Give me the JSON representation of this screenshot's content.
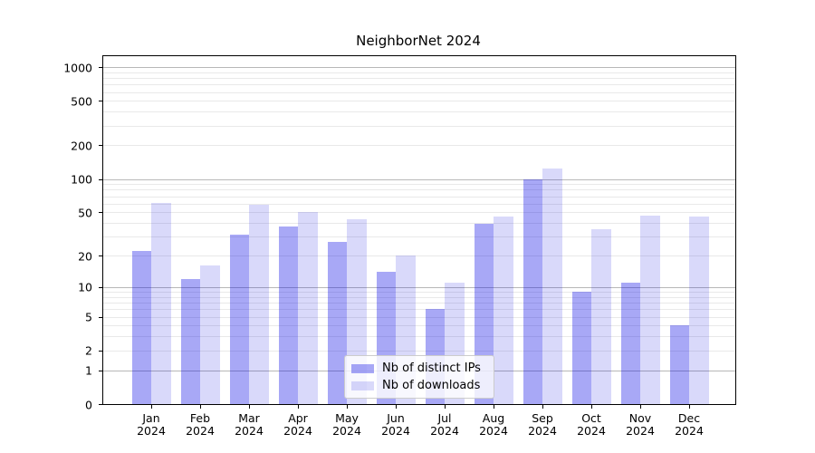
{
  "title": "NeighborNet 2024",
  "chart_data": {
    "type": "bar",
    "title": "NeighborNet 2024",
    "categories": [
      "Jan 2024",
      "Feb 2024",
      "Mar 2024",
      "Apr 2024",
      "May 2024",
      "Jun 2024",
      "Jul 2024",
      "Aug 2024",
      "Sep 2024",
      "Oct 2024",
      "Nov 2024",
      "Dec 2024"
    ],
    "month_labels": [
      "Jan",
      "Feb",
      "Mar",
      "Apr",
      "May",
      "Jun",
      "Jul",
      "Aug",
      "Sep",
      "Oct",
      "Nov",
      "Dec"
    ],
    "year": "2024",
    "series": [
      {
        "name": "Nb of distinct IPs",
        "color": "rgba(2,2,230,0.345)",
        "values": [
          22,
          12,
          31,
          37,
          27,
          14,
          6,
          39,
          100,
          9,
          11,
          4
        ]
      },
      {
        "name": "Nb of downloads",
        "color": "rgba(0,0,224,0.15)",
        "values": [
          61,
          16,
          58,
          50,
          43,
          20,
          11,
          46,
          124,
          35,
          47,
          46
        ]
      }
    ],
    "yscale": "log1p",
    "yticks": [
      0,
      1,
      2,
      5,
      10,
      20,
      50,
      100,
      200,
      500,
      1000
    ],
    "ylim": [
      0,
      1250
    ],
    "xlabel": "",
    "ylabel": "",
    "grid": {
      "orientation": "horizontal",
      "major_at": [
        1,
        10,
        100,
        1000
      ],
      "minor_at": [
        2,
        3,
        4,
        5,
        6,
        7,
        8,
        9,
        20,
        30,
        40,
        50,
        60,
        70,
        80,
        90,
        200,
        300,
        400,
        500,
        600,
        700,
        800,
        900
      ],
      "major_color": "#b8b8b8",
      "minor_color": "#e9e9e9"
    },
    "legend": {
      "position": "lower center",
      "labels": [
        "Nb of distinct IPs",
        "Nb of downloads"
      ]
    },
    "colors": {
      "bar_dark": "rgba(2,2,230,0.345)",
      "bar_light": "rgba(0,0,224,0.15)",
      "axis": "#000000",
      "background": "#ffffff"
    }
  }
}
